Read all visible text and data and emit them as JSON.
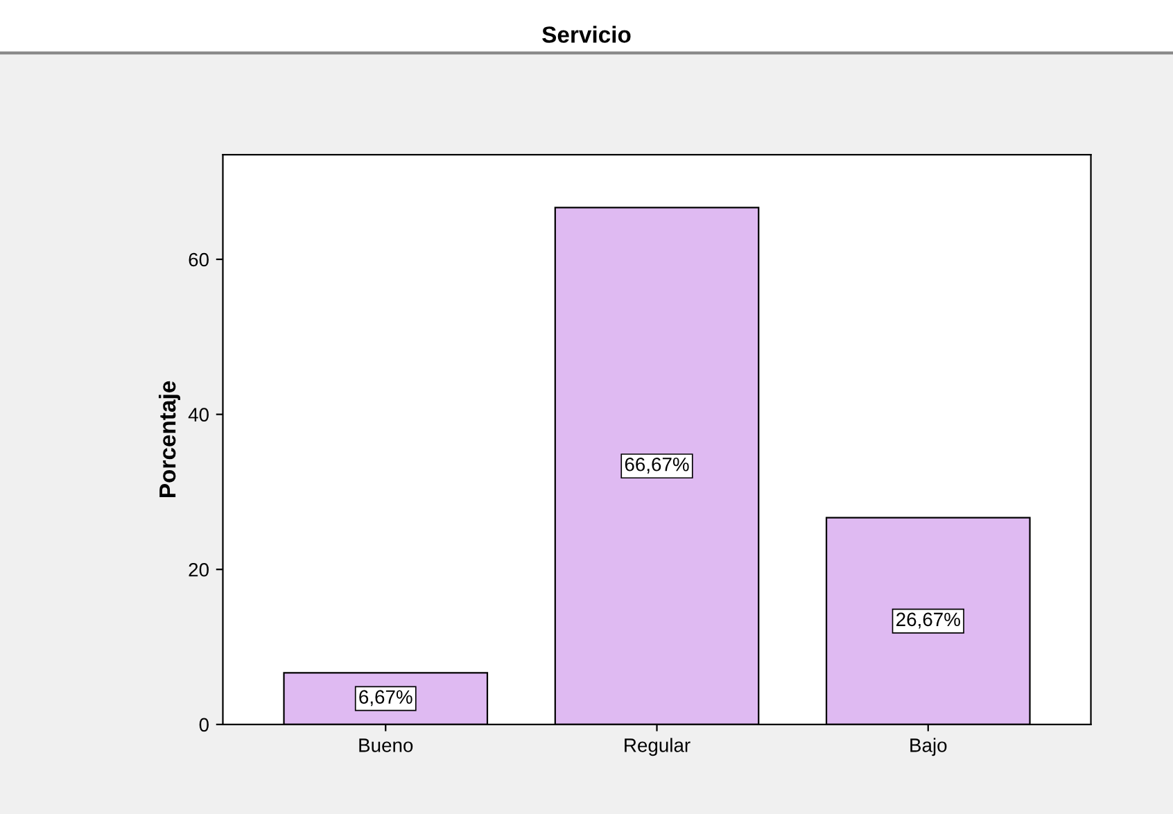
{
  "chart_data": {
    "type": "bar",
    "title": "Servicio",
    "ylabel": "Porcentaje",
    "categories": [
      "Bueno",
      "Regular",
      "Bajo"
    ],
    "values": [
      6.67,
      66.67,
      26.67
    ],
    "value_labels": [
      "6,67%",
      "66,67%",
      "26,67%"
    ],
    "color": "#dfbaf2",
    "ylim": [
      0,
      73.5
    ],
    "yticks": [
      0,
      20,
      40,
      60
    ],
    "grid": false,
    "legend": false
  }
}
